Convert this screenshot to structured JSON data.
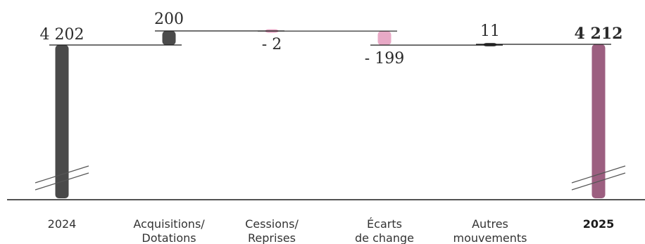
{
  "chart_data": {
    "type": "bar",
    "subtype": "waterfall",
    "categories": [
      {
        "id": "2024",
        "lines": [
          "2024"
        ],
        "bold": false
      },
      {
        "id": "acq",
        "lines": [
          "Acquisitions/",
          "Dotations"
        ],
        "bold": false
      },
      {
        "id": "cess",
        "lines": [
          "Cessions/",
          "Reprises"
        ],
        "bold": false
      },
      {
        "id": "ecarts",
        "lines": [
          "Écarts",
          "de change"
        ],
        "bold": false
      },
      {
        "id": "autres",
        "lines": [
          "Autres",
          "mouvements"
        ],
        "bold": false
      },
      {
        "id": "2025",
        "lines": [
          "2025"
        ],
        "bold": true
      }
    ],
    "values": [
      4202,
      200,
      -2,
      -199,
      11,
      4212
    ],
    "kinds": [
      "total",
      "delta",
      "delta",
      "delta",
      "delta",
      "total"
    ],
    "labels": [
      "4 202",
      "200",
      "- 2",
      "- 199",
      "11",
      "4 212"
    ],
    "colors": {
      "total_start": "#4a4a4a",
      "increase": "#4a4a4a",
      "decrease": "#e8a9c6",
      "neutral": "#4a4a4a",
      "total_end": "#9c5f80",
      "final_label": "#9c5f80",
      "connector": "#1a1a1a",
      "baseline": "#1a1a1a"
    },
    "axis_break": true,
    "grid": false,
    "title": "",
    "xlabel": "",
    "ylabel": ""
  }
}
